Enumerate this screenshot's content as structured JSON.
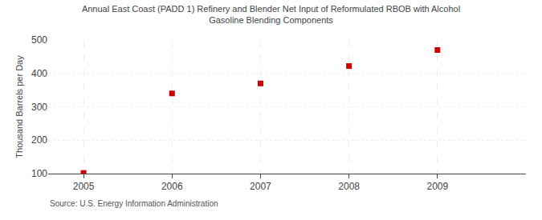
{
  "chart_data": {
    "type": "scatter",
    "title": "Annual East Coast (PADD 1) Refinery and Blender Net Input of Reformulated RBOB with Alcohol\nGasoline Blending Components",
    "ylabel": "Thousand Barrels per Day",
    "annotations": [
      "Source: U.S. Energy Information Administration"
    ],
    "x": [
      2005,
      2006,
      2007,
      2008,
      2009
    ],
    "values": [
      102,
      340,
      370,
      422,
      470
    ],
    "color": "#cc0000",
    "marker": "square",
    "xlim": [
      2004.6,
      2010.0
    ],
    "xticks": [
      2005,
      2006,
      2007,
      2008,
      2009
    ],
    "ylim": [
      100,
      500
    ],
    "yticks": [
      100,
      200,
      300,
      400,
      500
    ],
    "grid": true
  }
}
